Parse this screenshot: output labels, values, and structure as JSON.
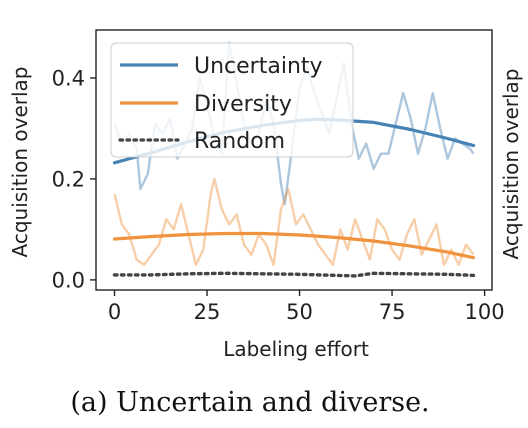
{
  "chart_data": {
    "type": "line",
    "caption": "(a) Uncertain and diverse.",
    "xlabel": "Labeling effort",
    "ylabel": "Acquisition overlap",
    "ylabel_right": "Acquisition overlap",
    "xlim": [
      -5,
      102
    ],
    "ylim": [
      -0.02,
      0.495
    ],
    "xticks": [
      0,
      25,
      50,
      75,
      100
    ],
    "xtick_labels": [
      "0",
      "25",
      "50",
      "75",
      "100"
    ],
    "yticks": [
      0.0,
      0.2,
      0.4
    ],
    "ytick_labels": [
      "0.0",
      "0.2",
      "0.4"
    ],
    "grid": false,
    "legend_position": "top-left",
    "series": [
      {
        "name": "Uncertainty",
        "color": "#4682b4",
        "style": "solid",
        "trend": {
          "x": [
            0,
            10,
            20,
            30,
            40,
            50,
            55,
            60,
            70,
            80,
            90,
            97
          ],
          "y": [
            0.232,
            0.252,
            0.274,
            0.293,
            0.306,
            0.316,
            0.318,
            0.317,
            0.312,
            0.298,
            0.28,
            0.266
          ]
        },
        "raw": {
          "x": [
            0,
            2,
            4,
            6,
            7,
            9,
            11,
            13,
            15,
            17,
            19,
            21,
            23,
            25,
            27,
            29,
            31,
            33,
            35,
            37,
            39,
            41,
            43,
            45,
            46,
            48,
            50,
            52,
            54,
            56,
            58,
            60,
            62,
            64,
            66,
            68,
            70,
            72,
            74,
            76,
            78,
            80,
            82,
            84,
            86,
            88,
            90,
            92,
            94,
            96,
            97
          ],
          "y": [
            0.31,
            0.27,
            0.29,
            0.26,
            0.18,
            0.21,
            0.31,
            0.29,
            0.32,
            0.24,
            0.27,
            0.3,
            0.4,
            0.35,
            0.28,
            0.25,
            0.47,
            0.39,
            0.31,
            0.27,
            0.29,
            0.36,
            0.31,
            0.19,
            0.15,
            0.26,
            0.38,
            0.42,
            0.37,
            0.33,
            0.29,
            0.36,
            0.43,
            0.31,
            0.24,
            0.27,
            0.22,
            0.25,
            0.25,
            0.31,
            0.37,
            0.32,
            0.25,
            0.3,
            0.37,
            0.3,
            0.24,
            0.28,
            0.27,
            0.26,
            0.25
          ]
        }
      },
      {
        "name": "Diversity",
        "color": "#f0923e",
        "style": "solid",
        "trend": {
          "x": [
            0,
            10,
            20,
            30,
            40,
            50,
            60,
            70,
            80,
            90,
            97
          ],
          "y": [
            0.081,
            0.086,
            0.09,
            0.092,
            0.092,
            0.089,
            0.084,
            0.077,
            0.067,
            0.055,
            0.044
          ]
        },
        "raw": {
          "x": [
            0,
            2,
            4,
            6,
            8,
            10,
            12,
            14,
            16,
            18,
            20,
            22,
            24,
            26,
            27,
            29,
            31,
            33,
            35,
            37,
            39,
            41,
            43,
            45,
            47,
            49,
            51,
            53,
            55,
            57,
            59,
            61,
            63,
            65,
            67,
            69,
            71,
            73,
            75,
            77,
            79,
            81,
            83,
            85,
            87,
            89,
            91,
            93,
            95,
            97
          ],
          "y": [
            0.17,
            0.11,
            0.09,
            0.04,
            0.03,
            0.05,
            0.07,
            0.12,
            0.1,
            0.15,
            0.09,
            0.03,
            0.06,
            0.17,
            0.2,
            0.14,
            0.11,
            0.13,
            0.07,
            0.05,
            0.09,
            0.07,
            0.03,
            0.14,
            0.18,
            0.11,
            0.13,
            0.1,
            0.07,
            0.05,
            0.03,
            0.1,
            0.06,
            0.12,
            0.08,
            0.04,
            0.12,
            0.1,
            0.06,
            0.04,
            0.09,
            0.12,
            0.05,
            0.08,
            0.11,
            0.03,
            0.06,
            0.03,
            0.07,
            0.05
          ]
        }
      },
      {
        "name": "Random",
        "color": "#444444",
        "style": "dotted",
        "trend": {
          "x": [
            0,
            10,
            20,
            30,
            40,
            50,
            55,
            60,
            65,
            70,
            80,
            90,
            97
          ],
          "y": [
            0.01,
            0.01,
            0.012,
            0.013,
            0.012,
            0.011,
            0.01,
            0.009,
            0.008,
            0.013,
            0.012,
            0.011,
            0.009
          ]
        }
      }
    ]
  }
}
